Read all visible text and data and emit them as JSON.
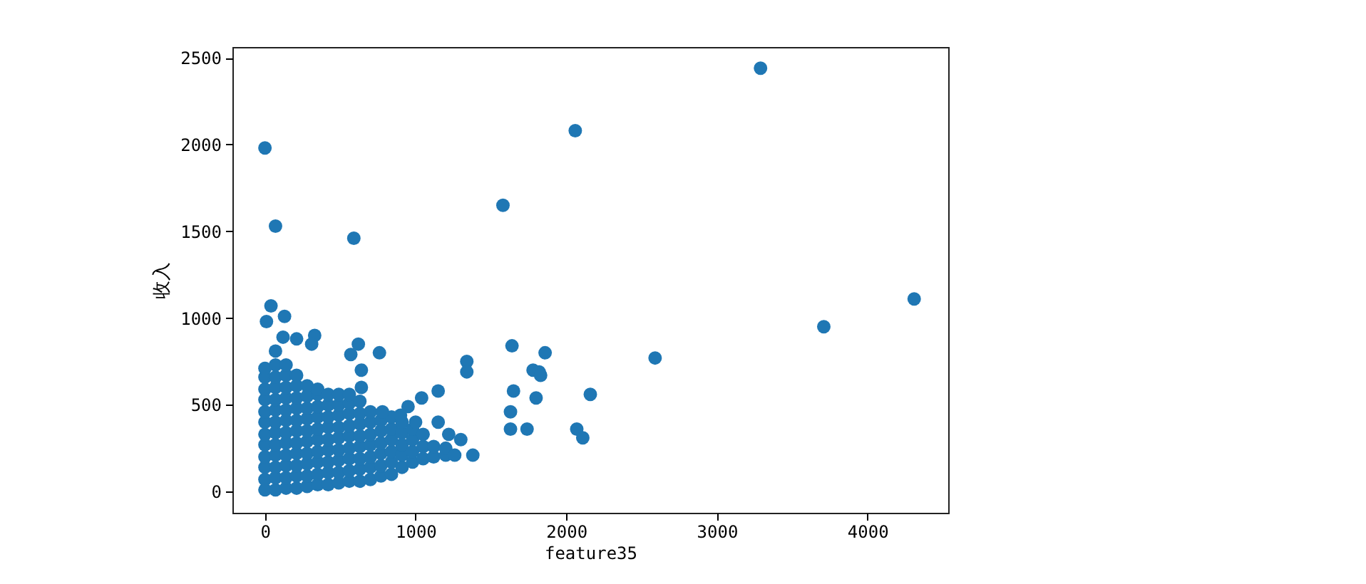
{
  "chart_data": {
    "type": "scatter",
    "xlabel": "feature35",
    "ylabel": "收入",
    "color": "#1f77b4",
    "marker": "circle",
    "grid": false,
    "xlim": [
      -216,
      4536
    ],
    "ylim": [
      -122,
      2562
    ],
    "xticks": [
      0,
      1000,
      2000,
      3000,
      4000
    ],
    "yticks": [
      0,
      500,
      1000,
      1500,
      2000,
      2500
    ],
    "x": [
      0,
      0,
      0,
      0,
      0,
      0,
      0,
      0,
      0,
      0,
      0,
      0,
      70,
      70,
      70,
      70,
      70,
      70,
      70,
      70,
      70,
      70,
      70,
      70,
      140,
      140,
      140,
      140,
      140,
      140,
      140,
      140,
      140,
      140,
      140,
      140,
      210,
      210,
      210,
      210,
      210,
      210,
      210,
      210,
      210,
      210,
      210,
      280,
      280,
      280,
      280,
      280,
      280,
      280,
      280,
      280,
      280,
      350,
      350,
      350,
      350,
      350,
      350,
      350,
      350,
      350,
      350,
      420,
      420,
      420,
      420,
      420,
      420,
      420,
      420,
      420,
      490,
      490,
      490,
      490,
      490,
      490,
      490,
      490,
      490,
      560,
      560,
      560,
      560,
      560,
      560,
      560,
      560,
      560,
      630,
      630,
      630,
      630,
      630,
      630,
      630,
      630,
      700,
      700,
      700,
      700,
      700,
      700,
      700,
      770,
      770,
      770,
      770,
      770,
      770,
      840,
      840,
      840,
      840,
      840,
      840,
      910,
      910,
      910,
      910,
      910,
      980,
      980,
      980,
      980,
      1050,
      1050,
      1050,
      1120,
      1120,
      1200,
      1200,
      0,
      70,
      590,
      1580,
      2060,
      3290,
      4310,
      3710,
      2590,
      2160,
      2070,
      2110,
      1860,
      1640,
      1780,
      1820,
      1830,
      1650,
      1800,
      1630,
      1630,
      1740,
      1340,
      1340,
      1150,
      1150,
      1380,
      1260,
      1220,
      1300,
      1040,
      950,
      760,
      620,
      570,
      640,
      640,
      330,
      210,
      120,
      40,
      130,
      10,
      310,
      70,
      780,
      900,
      1000
    ],
    "values": [
      10,
      70,
      140,
      200,
      270,
      330,
      400,
      460,
      530,
      590,
      660,
      710,
      10,
      80,
      140,
      210,
      270,
      340,
      400,
      470,
      530,
      600,
      660,
      730,
      20,
      80,
      150,
      210,
      280,
      340,
      410,
      470,
      540,
      600,
      670,
      730,
      20,
      90,
      150,
      220,
      280,
      350,
      410,
      480,
      540,
      610,
      670,
      30,
      90,
      160,
      220,
      290,
      350,
      420,
      480,
      550,
      610,
      40,
      100,
      170,
      230,
      300,
      360,
      430,
      490,
      560,
      590,
      40,
      110,
      170,
      240,
      300,
      370,
      430,
      500,
      560,
      50,
      110,
      180,
      240,
      310,
      370,
      440,
      500,
      560,
      60,
      120,
      190,
      250,
      320,
      380,
      450,
      510,
      560,
      60,
      130,
      190,
      260,
      320,
      390,
      450,
      520,
      70,
      140,
      200,
      270,
      330,
      400,
      460,
      90,
      150,
      220,
      280,
      350,
      410,
      100,
      170,
      230,
      300,
      360,
      430,
      140,
      210,
      270,
      340,
      400,
      170,
      230,
      300,
      360,
      190,
      260,
      330,
      200,
      260,
      210,
      250,
      1980,
      1530,
      1460,
      1650,
      2080,
      2440,
      1110,
      950,
      770,
      560,
      360,
      310,
      800,
      840,
      700,
      690,
      670,
      580,
      540,
      460,
      360,
      360,
      750,
      690,
      580,
      400,
      210,
      210,
      330,
      300,
      540,
      490,
      800,
      850,
      790,
      700,
      600,
      900,
      880,
      890,
      1070,
      1010,
      980,
      850,
      810,
      460,
      440,
      400
    ]
  }
}
